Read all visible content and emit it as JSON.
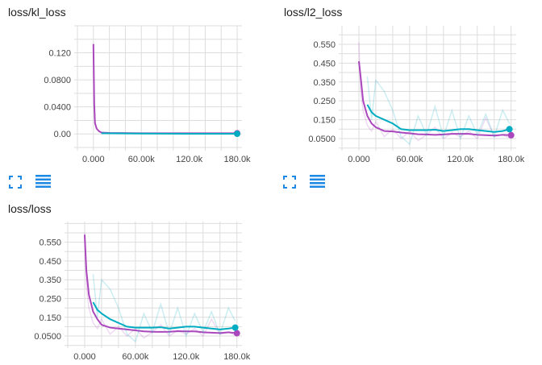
{
  "colors": {
    "purple": "#ab47bc",
    "teal": "#00acc1",
    "grid": "#dddddd",
    "icon": "#1e88e5"
  },
  "icons": [
    "fullscreen-icon",
    "menu-lines-icon"
  ],
  "chart_data": [
    {
      "type": "line",
      "title": "loss/kl_loss",
      "xlim": [
        -20000,
        186000
      ],
      "ylim": [
        -0.02,
        0.16
      ],
      "grid": true,
      "xticks": [
        0,
        60000,
        120000,
        180000
      ],
      "xtick_labels": [
        "0.000",
        "60.00k",
        "120.0k",
        "180.0k"
      ],
      "yticks": [
        0,
        0.04,
        0.08,
        0.12
      ],
      "ytick_labels": [
        "0.00",
        "0.0400",
        "0.0800",
        "0.120"
      ],
      "series": [
        {
          "color": "#ab47bc",
          "x": [
            0,
            1000,
            2000,
            4000,
            7000,
            10000,
            20000,
            60000,
            120000,
            180000
          ],
          "y": [
            0.133,
            0.045,
            0.016,
            0.008,
            0.004,
            0.002,
            0.0015,
            0.001,
            0.001,
            0.001
          ]
        },
        {
          "color": "#00acc1",
          "x": [
            10000,
            60000,
            120000,
            180000
          ],
          "y": [
            0.001,
            0.0005,
            0.0003,
            0.0002
          ]
        }
      ]
    },
    {
      "type": "line",
      "title": "loss/l2_loss",
      "xlim": [
        -20000,
        186000
      ],
      "ylim": [
        0.003,
        0.648
      ],
      "grid": true,
      "xticks": [
        0,
        60000,
        120000,
        180000
      ],
      "xtick_labels": [
        "0.000",
        "60.00k",
        "120.0k",
        "180.0k"
      ],
      "yticks": [
        0.05,
        0.15,
        0.25,
        0.35,
        0.45,
        0.55
      ],
      "ytick_labels": [
        "0.0500",
        "0.150",
        "0.250",
        "0.350",
        "0.450",
        "0.550"
      ],
      "series": [
        {
          "color": "#ab47bc",
          "x": [
            0,
            2000,
            5000,
            10000,
            15000,
            20000,
            30000,
            40000,
            50000,
            60000,
            70000,
            80000,
            90000,
            100000,
            110000,
            120000,
            130000,
            140000,
            150000,
            160000,
            170000,
            180000
          ],
          "y": [
            0.46,
            0.38,
            0.25,
            0.17,
            0.13,
            0.11,
            0.09,
            0.088,
            0.082,
            0.078,
            0.073,
            0.072,
            0.07,
            0.072,
            0.075,
            0.075,
            0.075,
            0.07,
            0.068,
            0.066,
            0.07,
            0.068
          ],
          "raw": [
            0.56,
            0.3,
            0.2,
            0.12,
            0.09,
            0.14,
            0.06,
            0.1,
            0.05,
            0.09,
            0.04,
            0.07,
            0.11,
            0.05,
            0.08,
            0.06,
            0.09,
            0.05,
            0.16,
            0.06,
            0.07,
            0.05
          ]
        },
        {
          "color": "#00acc1",
          "x": [
            10000,
            15000,
            20000,
            30000,
            40000,
            50000,
            60000,
            70000,
            80000,
            90000,
            100000,
            110000,
            120000,
            130000,
            140000,
            150000,
            160000,
            170000,
            178000
          ],
          "y": [
            0.23,
            0.19,
            0.17,
            0.15,
            0.13,
            0.1,
            0.095,
            0.095,
            0.095,
            0.097,
            0.09,
            0.095,
            0.1,
            0.1,
            0.095,
            0.09,
            0.085,
            0.09,
            0.1
          ],
          "raw": [
            0.38,
            0.15,
            0.36,
            0.3,
            0.2,
            0.06,
            0.02,
            0.17,
            0.07,
            0.22,
            0.06,
            0.2,
            0.05,
            0.17,
            0.07,
            0.18,
            0.06,
            0.2,
            0.13
          ]
        }
      ]
    },
    {
      "type": "line",
      "title": "loss/loss",
      "xlim": [
        -20000,
        186000
      ],
      "ylim": [
        0.003,
        0.66
      ],
      "grid": true,
      "xticks": [
        0,
        60000,
        120000,
        180000
      ],
      "xtick_labels": [
        "0.000",
        "60.00k",
        "120.0k",
        "180.0k"
      ],
      "yticks": [
        0.05,
        0.15,
        0.25,
        0.35,
        0.45,
        0.55
      ],
      "ytick_labels": [
        "0.0500",
        "0.150",
        "0.250",
        "0.350",
        "0.450",
        "0.550"
      ],
      "series": [
        {
          "color": "#ab47bc",
          "x": [
            0,
            2000,
            5000,
            10000,
            15000,
            20000,
            30000,
            40000,
            50000,
            60000,
            70000,
            80000,
            90000,
            100000,
            110000,
            120000,
            130000,
            140000,
            150000,
            160000,
            170000,
            180000
          ],
          "y": [
            0.59,
            0.4,
            0.27,
            0.18,
            0.14,
            0.11,
            0.095,
            0.09,
            0.085,
            0.08,
            0.075,
            0.073,
            0.072,
            0.073,
            0.076,
            0.075,
            0.075,
            0.07,
            0.068,
            0.066,
            0.07,
            0.065
          ],
          "raw": [
            0.6,
            0.32,
            0.2,
            0.12,
            0.09,
            0.14,
            0.06,
            0.1,
            0.05,
            0.09,
            0.04,
            0.07,
            0.11,
            0.05,
            0.08,
            0.06,
            0.09,
            0.05,
            0.14,
            0.06,
            0.07,
            0.05
          ]
        },
        {
          "color": "#00acc1",
          "x": [
            10000,
            15000,
            20000,
            30000,
            40000,
            50000,
            60000,
            70000,
            80000,
            90000,
            100000,
            110000,
            120000,
            130000,
            140000,
            150000,
            160000,
            170000,
            178000
          ],
          "y": [
            0.23,
            0.19,
            0.17,
            0.14,
            0.12,
            0.1,
            0.095,
            0.095,
            0.095,
            0.097,
            0.09,
            0.095,
            0.1,
            0.1,
            0.095,
            0.09,
            0.085,
            0.09,
            0.095
          ],
          "raw": [
            0.38,
            0.15,
            0.35,
            0.3,
            0.2,
            0.06,
            0.02,
            0.17,
            0.07,
            0.22,
            0.06,
            0.2,
            0.05,
            0.17,
            0.07,
            0.18,
            0.06,
            0.2,
            0.13
          ]
        }
      ]
    }
  ]
}
